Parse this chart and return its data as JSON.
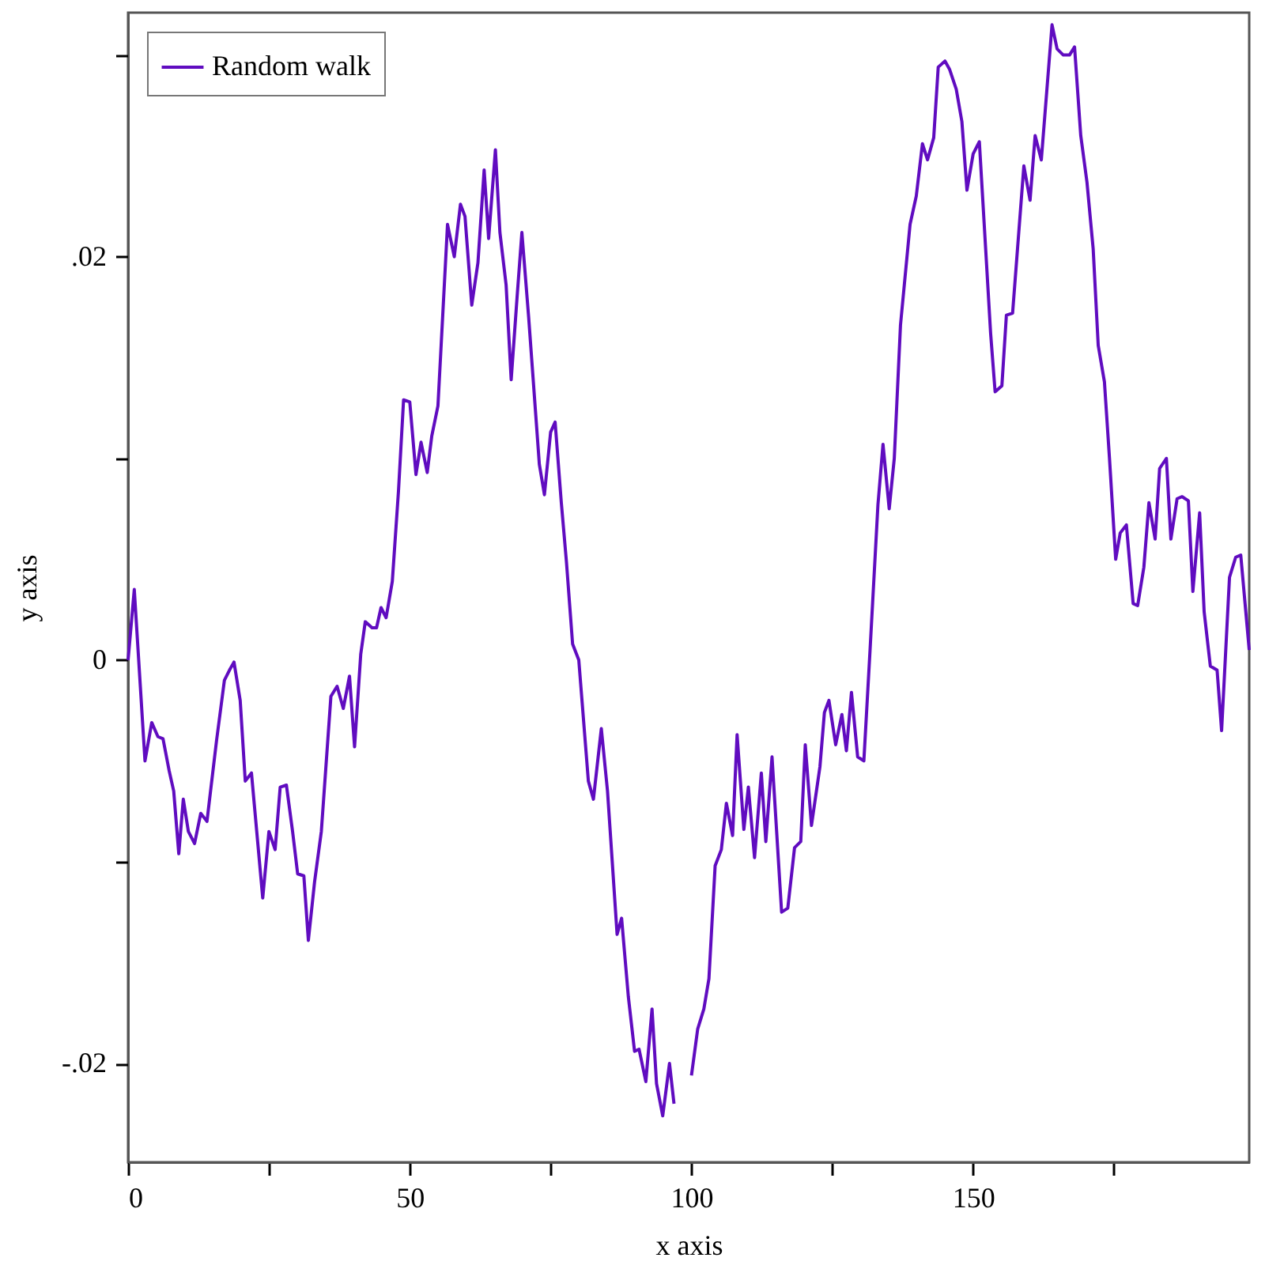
{
  "chart_data": {
    "type": "line",
    "xlabel": "x axis",
    "ylabel": "y axis",
    "xlim": [
      0,
      199
    ],
    "ylim": [
      -0.0249,
      0.0321
    ],
    "xticks": [
      0,
      {
        "value": 25,
        "label": null
      },
      50,
      {
        "value": 75,
        "label": null
      },
      100,
      {
        "value": 125,
        "label": null
      },
      150,
      {
        "value": 175,
        "label": null
      }
    ],
    "yticks": [
      {
        "value": -0.02,
        "label": "-.02"
      },
      {
        "value": -0.01,
        "label": null
      },
      0,
      {
        "value": 0.01,
        "label": null
      },
      {
        "value": 0.02,
        "label": ".02"
      },
      {
        "value": 0.03,
        "label": null
      }
    ],
    "grid": false,
    "legend": "top left",
    "marker": "none",
    "line_style": "solid",
    "series": [
      {
        "name": "Random walk",
        "color": "#600cc0",
        "x": [
          0,
          1.1,
          3,
          4.2,
          5.3,
          6.2,
          7.3,
          8.1,
          9,
          9.8,
          10.7,
          11.8,
          12.9,
          14,
          15.7,
          17.1,
          18,
          18.8,
          19.9,
          20.8,
          21.9,
          23.9,
          25,
          26.1,
          27,
          28.1,
          29.2,
          30.1,
          31.2,
          32,
          33.1,
          34.3,
          36,
          37.1,
          38.2,
          39.3,
          40.2,
          41.3,
          42.1,
          43.3,
          44.1,
          44.9,
          45.8,
          46.9,
          48,
          48.9,
          50,
          51.1,
          52,
          53.1,
          53.9,
          55,
          56.7,
          57.9,
          59,
          59.8,
          61,
          62.1,
          63.2,
          64,
          65.2,
          66,
          67.1,
          68,
          69.1,
          69.9,
          71.1,
          73,
          73.9,
          75,
          75.8,
          76.9,
          77.8,
          78.9,
          80,
          81.7,
          82.6,
          84,
          85.1,
          86.8,
          87.6,
          88.8,
          89.9,
          90.7,
          91.9,
          93,
          93.8,
          94.9,
          96.1,
          96.9,
          98,
          98.9,
          100,
          101.1,
          102.2,
          103.1,
          104.2,
          105.3,
          106.2,
          107.3,
          108.1,
          109.3,
          110.1,
          111.2,
          112.4,
          113.2,
          114.3,
          116,
          117.1,
          118.3,
          119.4,
          120.2,
          121.3,
          122.8,
          123.6,
          124.4,
          125.6,
          126.7,
          127.5,
          128.4,
          129.5,
          130.6,
          131.7,
          133.1,
          134,
          135.1,
          136,
          137.1,
          138.8,
          139.9,
          141,
          141.9,
          143,
          143.8,
          145,
          145.8,
          147,
          148,
          148.9,
          150,
          151.1,
          153.1,
          153.9,
          155.1,
          155.9,
          157,
          159,
          160.1,
          161,
          162.1,
          164,
          164.9,
          166,
          167.1,
          168,
          169.1,
          170.2,
          171.3,
          172.2,
          173.3,
          174.2,
          175.3,
          176.1,
          177.2,
          178.4,
          179.2,
          180.3,
          181.2,
          182.3,
          183.1,
          184.3,
          185.1,
          186.2,
          187.1,
          188.2,
          189,
          190.2,
          191,
          192.1,
          193.3,
          194.1,
          195.5,
          196.6,
          197.5,
          199
        ],
        "values": [
          0,
          0.0035,
          -0.005,
          -0.0031,
          -0.0038,
          -0.0039,
          -0.0055,
          -0.0065,
          -0.0096,
          -0.0069,
          -0.0085,
          -0.0091,
          -0.0076,
          -0.008,
          -0.004,
          -0.001,
          -0.0005,
          -0.0001,
          -0.002,
          -0.006,
          -0.0056,
          -0.0118,
          -0.0085,
          -0.0094,
          -0.0063,
          -0.0062,
          -0.0085,
          -0.0106,
          -0.0107,
          -0.0139,
          -0.011,
          -0.0085,
          -0.0018,
          -0.0013,
          -0.0024,
          -0.0008,
          -0.0043,
          0.0003,
          0.0019,
          0.0016,
          0.0016,
          0.0026,
          0.0021,
          0.0039,
          0.0084,
          0.0129,
          0.0128,
          0.0092,
          0.0108,
          0.0093,
          0.0111,
          0.0126,
          0.0216,
          0.02,
          0.0226,
          0.022,
          0.0176,
          0.0197,
          0.0243,
          0.0209,
          0.0253,
          0.0212,
          0.0186,
          0.0139,
          0.0182,
          0.0212,
          0.017,
          0.0097,
          0.0082,
          0.0113,
          0.0118,
          0.0078,
          0.0049,
          0.0008,
          0,
          -0.006,
          -0.0069,
          -0.0034,
          -0.0065,
          -0.0136,
          -0.0128,
          -0.0167,
          -0.0194,
          -0.0193,
          -0.0209,
          -0.0173,
          -0.021,
          -0.0226,
          -0.02,
          -0.022,
          null,
          null,
          -0.0206,
          -0.0183,
          -0.0173,
          -0.0158,
          -0.0102,
          -0.0094,
          -0.0071,
          -0.0087,
          -0.0037,
          -0.0084,
          -0.0063,
          -0.0098,
          -0.0056,
          -0.009,
          -0.0048,
          -0.0125,
          -0.0123,
          -0.0093,
          -0.009,
          -0.0042,
          -0.0082,
          -0.0053,
          -0.0026,
          -0.002,
          -0.0042,
          -0.0027,
          -0.0045,
          -0.0016,
          -0.0048,
          -0.005,
          0.0005,
          0.0077,
          0.0107,
          0.0075,
          0.01,
          0.0166,
          0.0216,
          0.023,
          0.0256,
          0.0248,
          0.0259,
          0.0294,
          0.0297,
          0.0293,
          0.0283,
          0.0267,
          0.0233,
          0.0251,
          0.0257,
          0.0162,
          0.0133,
          0.0136,
          0.0171,
          0.0172,
          0.0245,
          0.0228,
          0.026,
          0.0248,
          0.0315,
          0.0303,
          0.03,
          0.03,
          0.0304,
          0.026,
          0.0237,
          0.0204,
          0.0156,
          0.0138,
          0.01,
          0.005,
          0.0063,
          0.0067,
          0.0028,
          0.0027,
          0.0046,
          0.0078,
          0.006,
          0.0095,
          0.01,
          0.006,
          0.008,
          0.0081,
          0.0079,
          0.0034,
          0.0073,
          0.0024,
          -0.0003,
          -0.0005,
          -0.0035,
          0.0041,
          0.0051,
          0.0052,
          0.0005
        ]
      }
    ]
  }
}
